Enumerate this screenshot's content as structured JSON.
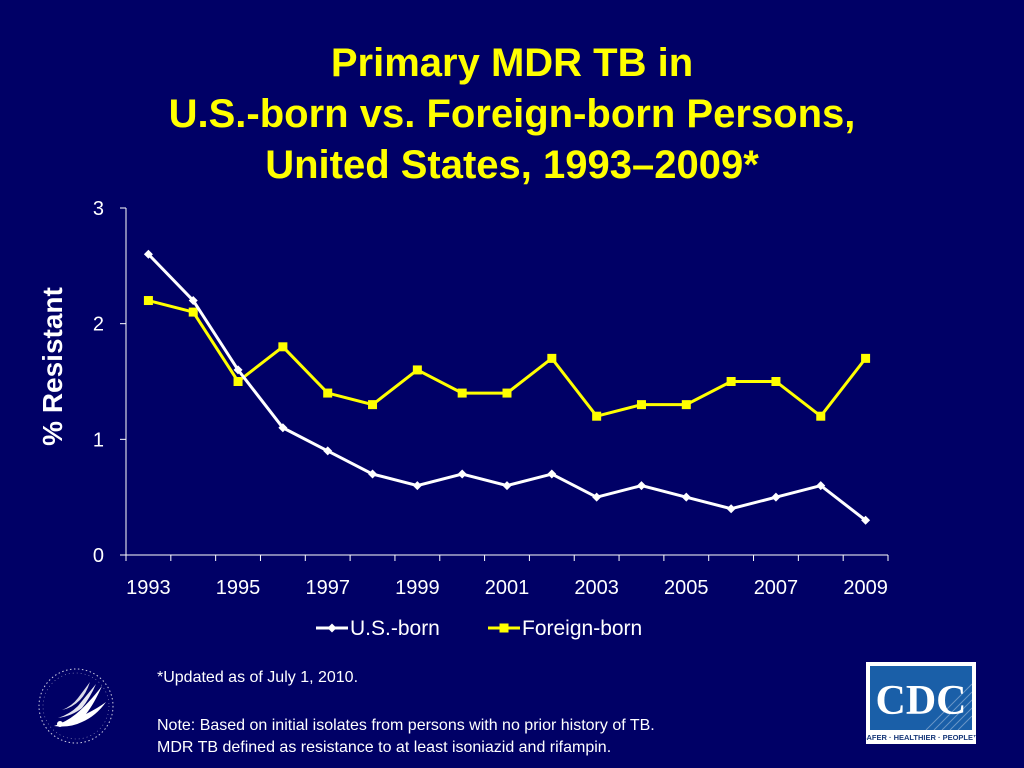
{
  "title": {
    "line1": "Primary MDR TB in",
    "line2": "U.S.-born vs. Foreign-born Persons,",
    "line3": "United States, 1993–2009*"
  },
  "footnotes": {
    "updated": "*Updated as of July 1, 2010.",
    "note1": "Note: Based on initial isolates from persons with no prior history of TB.",
    "note2": "MDR TB defined as resistance to at least isoniazid and rifampin."
  },
  "logos": {
    "cdc_text": "CDC",
    "cdc_tagline": "SAFER · HEALTHIER · PEOPLE™",
    "hhs_icon": "hhs-eagle-seal-icon"
  },
  "colors": {
    "background": "#000066",
    "title": "#ffff00",
    "us_born": "#ffffff",
    "foreign_born": "#ffff00"
  },
  "chart_data": {
    "type": "line",
    "title": "Primary MDR TB in U.S.-born vs. Foreign-born Persons, United States, 1993–2009*",
    "xlabel": "",
    "ylabel": "% Resistant",
    "x": [
      1993,
      1994,
      1995,
      1996,
      1997,
      1998,
      1999,
      2000,
      2001,
      2002,
      2003,
      2004,
      2005,
      2006,
      2007,
      2008,
      2009
    ],
    "x_tick_labels": [
      "1993",
      "1995",
      "1997",
      "1999",
      "2001",
      "2003",
      "2005",
      "2007",
      "2009"
    ],
    "y_tick_labels": [
      "0",
      "1",
      "2",
      "3"
    ],
    "ylim": [
      0,
      3
    ],
    "grid": false,
    "legend_position": "bottom",
    "series": [
      {
        "name": "U.S.-born",
        "marker": "diamond",
        "values": [
          2.6,
          2.2,
          1.6,
          1.1,
          0.9,
          0.7,
          0.6,
          0.7,
          0.6,
          0.7,
          0.5,
          0.6,
          0.5,
          0.4,
          0.5,
          0.6,
          0.3
        ]
      },
      {
        "name": "Foreign-born",
        "marker": "square",
        "values": [
          2.2,
          2.1,
          1.5,
          1.8,
          1.4,
          1.3,
          1.6,
          1.4,
          1.4,
          1.7,
          1.2,
          1.3,
          1.3,
          1.5,
          1.5,
          1.2,
          1.7
        ]
      }
    ]
  }
}
